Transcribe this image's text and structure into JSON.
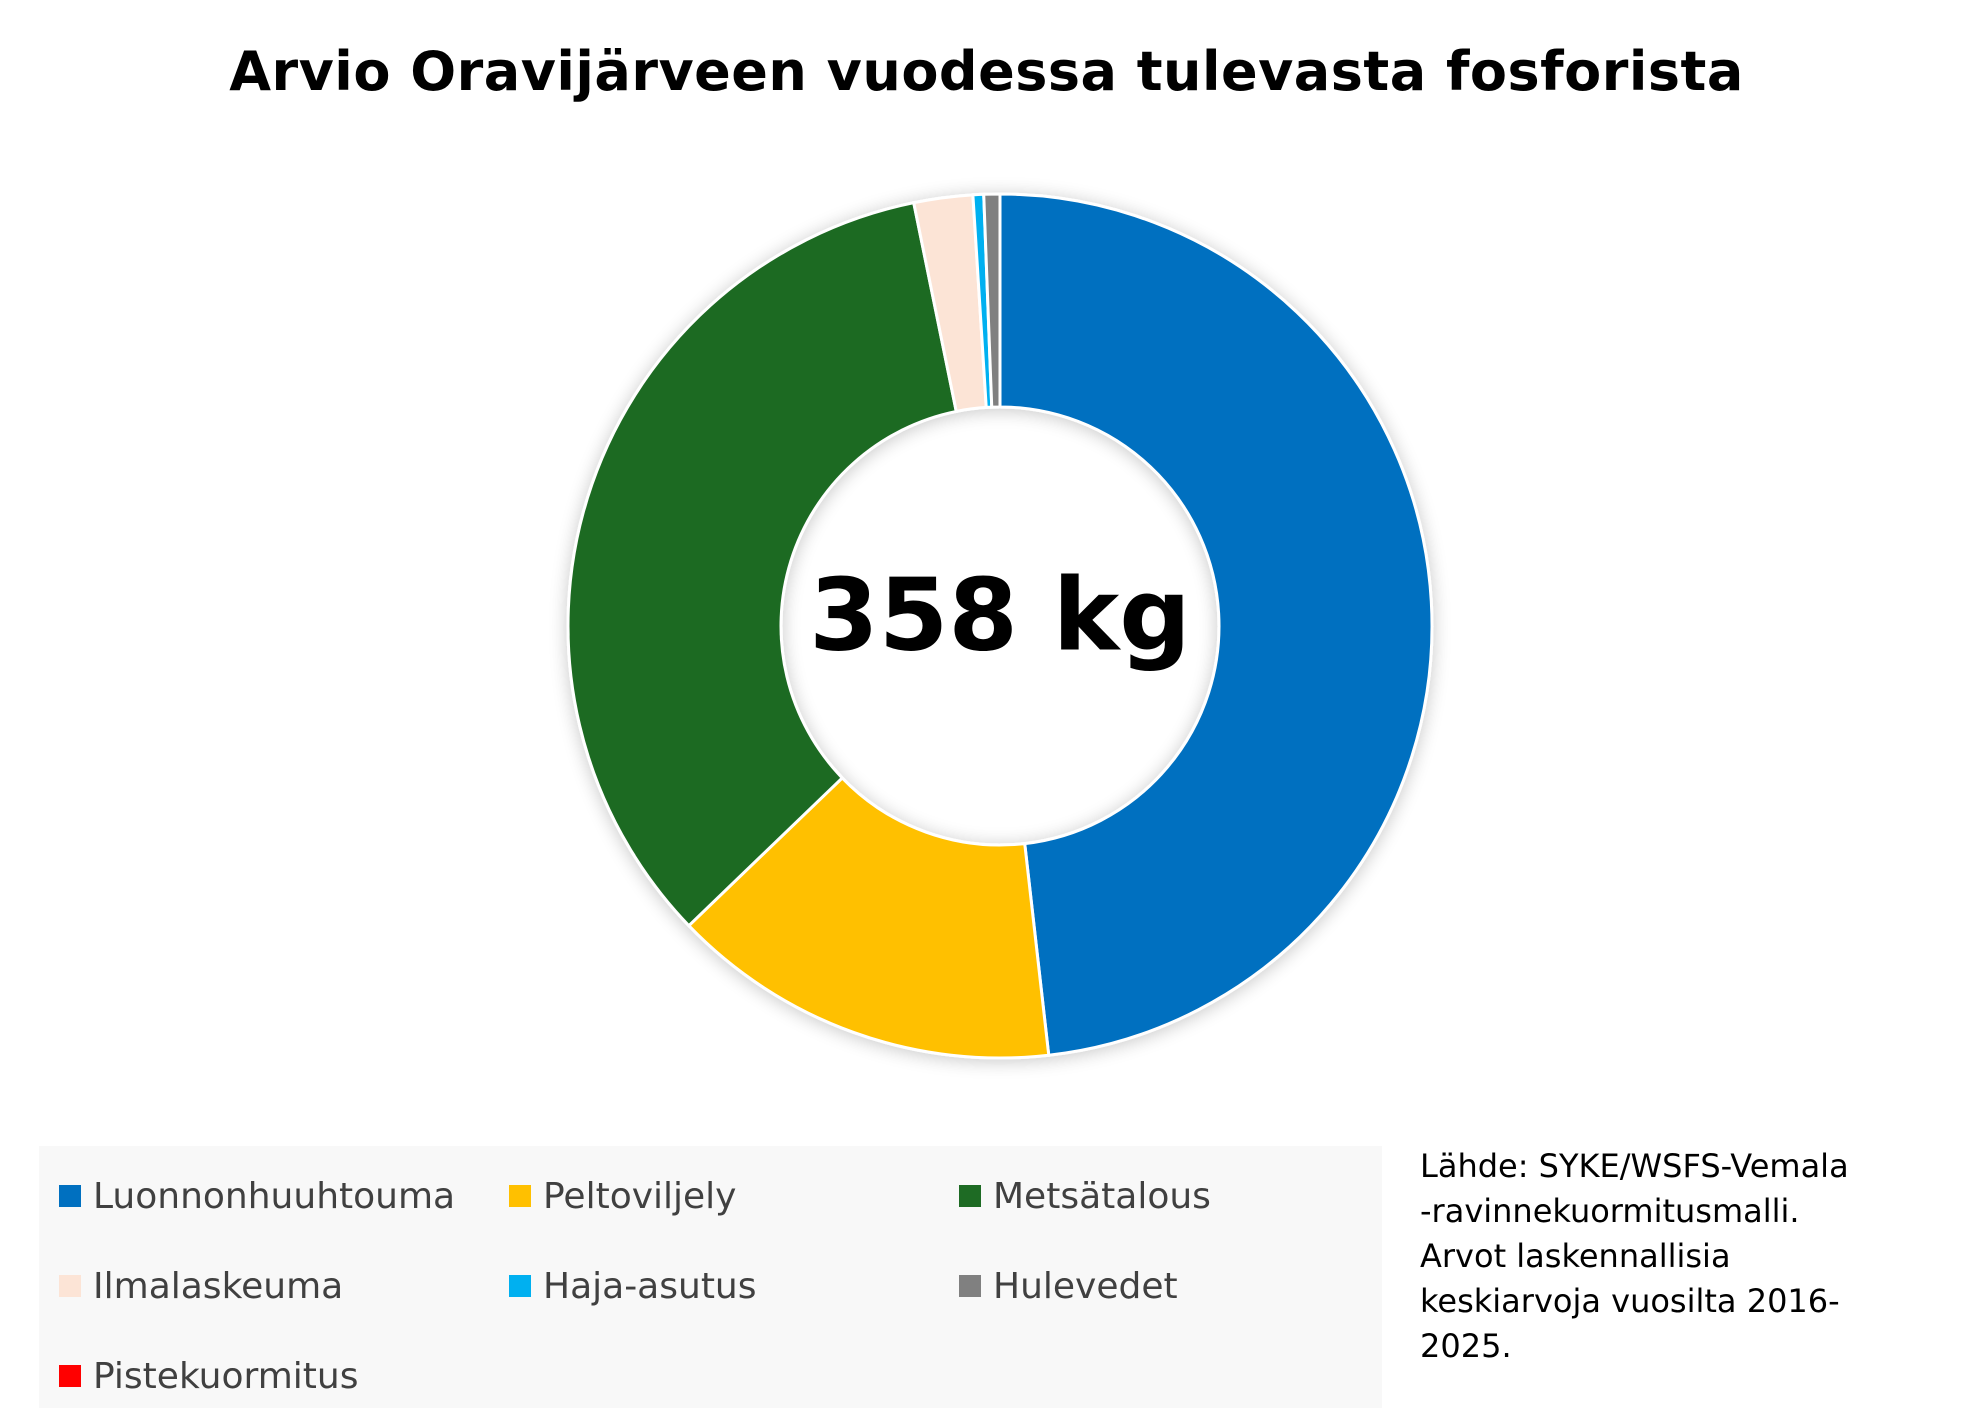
{
  "chart_data": {
    "type": "donut",
    "title": "Arvio Oravijärveen vuodessa tulevasta fosforista",
    "center_label": "358 kg",
    "total": 358,
    "unit": "kg",
    "legend_placement": "bottom",
    "slices": [
      {
        "name": "Luonnonhuuhtouma",
        "percent": 48.2,
        "color": "#0070C0"
      },
      {
        "name": "Peltoviljely",
        "percent": 14.6,
        "color": "#FFC000"
      },
      {
        "name": "Metsätalous",
        "percent": 34.0,
        "color": "#1E6B24"
      },
      {
        "name": "Ilmalaskeuma",
        "percent": 2.2,
        "color": "#FCE4D6"
      },
      {
        "name": "Haja-asutus",
        "percent": 0.4,
        "color": "#00B0F0"
      },
      {
        "name": "Hulevedet",
        "percent": 0.6,
        "color": "#808080"
      },
      {
        "name": "Pistekuormitus",
        "percent": 0.0,
        "color": "#FF0000"
      }
    ]
  },
  "source_note": {
    "lines": [
      "Lähde: SYKE/WSFS-Vemala",
      "-ravinnekuormitusmalli.",
      "Arvot laskennallisia",
      "keskiarvoja vuosilta 2016-",
      "2025."
    ]
  }
}
